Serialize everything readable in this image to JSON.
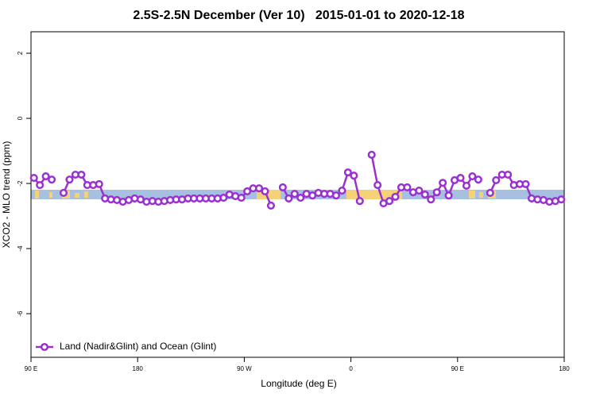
{
  "chart_data": {
    "type": "line",
    "title": "2.5S-2.5N December (Ver 10)   2015-01-01 to 2020-12-18",
    "xlabel": "Longitude (deg E)",
    "ylabel": "XCO2 - MLO trend (ppm)",
    "x": [
      92.5,
      97.5,
      102.5,
      107.5,
      112.5,
      117.5,
      122.5,
      127.5,
      132.5,
      137.5,
      142.5,
      147.5,
      152.5,
      157.5,
      162.5,
      167.5,
      172.5,
      177.5,
      182.5,
      187.5,
      192.5,
      197.5,
      202.5,
      207.5,
      212.5,
      217.5,
      222.5,
      227.5,
      232.5,
      237.5,
      242.5,
      247.5,
      252.5,
      257.5,
      262.5,
      267.5,
      272.5,
      277.5,
      282.5,
      287.5,
      292.5,
      297.5,
      302.5,
      307.5,
      312.5,
      317.5,
      322.5,
      327.5,
      332.5,
      337.5,
      342.5,
      347.5,
      352.5,
      357.5,
      362.5,
      367.5,
      372.5,
      377.5,
      382.5,
      387.5,
      392.5,
      397.5,
      402.5,
      407.5,
      412.5,
      417.5,
      422.5,
      427.5,
      432.5,
      437.5,
      442.5,
      447.5,
      452.5,
      457.5,
      462.5,
      467.5,
      472.5,
      477.5,
      482.5,
      487.5,
      492.5,
      497.5,
      502.5,
      507.5,
      512.5,
      517.5,
      522.5,
      527.5,
      532.5,
      537.5
    ],
    "series": [
      {
        "name": "Land (Nadir&Glint) and Ocean (Glint)",
        "color": "#9b30d0",
        "values": [
          -1.83,
          -2.05,
          -1.78,
          -1.88,
          null,
          -2.29,
          -1.88,
          -1.73,
          -1.73,
          -2.05,
          -2.05,
          -2.02,
          -2.46,
          -2.49,
          -2.51,
          -2.56,
          -2.51,
          -2.46,
          -2.49,
          -2.56,
          -2.54,
          -2.56,
          -2.54,
          -2.51,
          -2.49,
          -2.49,
          -2.46,
          -2.46,
          -2.46,
          -2.46,
          -2.46,
          -2.46,
          -2.44,
          -2.34,
          -2.39,
          -2.44,
          -2.24,
          -2.15,
          -2.15,
          -2.24,
          -2.68,
          null,
          -2.12,
          -2.46,
          -2.32,
          -2.44,
          -2.32,
          -2.37,
          -2.29,
          -2.32,
          -2.32,
          -2.37,
          -2.22,
          -1.66,
          -1.76,
          -2.54,
          null,
          -1.12,
          -2.05,
          -2.61,
          -2.54,
          -2.41,
          -2.12,
          -2.12,
          -2.27,
          -2.22,
          -2.34,
          -2.49,
          -2.27,
          -1.98,
          -2.37,
          -1.9,
          -1.83,
          -2.07,
          -1.78,
          -1.88,
          null,
          -2.29,
          -1.9,
          -1.73,
          -1.73,
          -2.05,
          -2.02,
          -2.02,
          -2.46,
          -2.49,
          -2.51,
          -2.56,
          -2.54,
          -2.49
        ]
      }
    ],
    "xlim": [
      90,
      540
    ],
    "ylim": [
      -7.34,
      2.66
    ],
    "xticks": [
      {
        "value": 90,
        "label": "90 E"
      },
      180,
      {
        "value": 270,
        "label": "90 W"
      },
      {
        "value": 360,
        "label": "0"
      },
      {
        "value": 450,
        "label": "90 E"
      },
      180
    ],
    "yticks": [
      -6,
      -4,
      -2,
      0,
      2
    ],
    "grid": false,
    "legend": "bottom-left"
  }
}
